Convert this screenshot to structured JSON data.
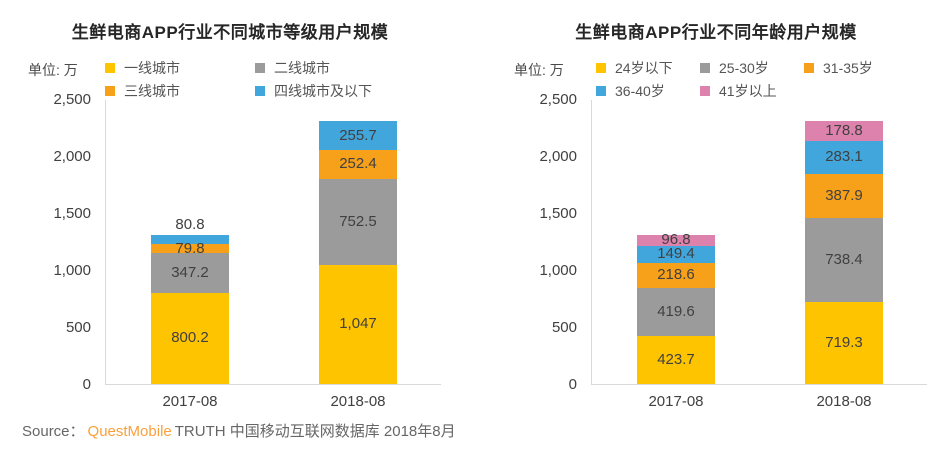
{
  "source": {
    "prefix": "Source：",
    "brand": "QuestMobile",
    "suffix": "TRUTH 中国移动互联网数据库 2018年8月"
  },
  "colors": {
    "yellow": "#ffc400",
    "gray": "#9b9b9b",
    "orange": "#f7a01a",
    "blue": "#41a6dc",
    "pink": "#dd82ac",
    "axis_line": "#d9d9d9",
    "label_text": "#404040",
    "brand_orange": "#f9a03c"
  },
  "chart_data": [
    {
      "type": "bar",
      "stacked": true,
      "title": "生鲜电商APP行业不同城市等级用户规模",
      "unit_label": "单位: 万",
      "categories": [
        "2017-08",
        "2018-08"
      ],
      "ylim": [
        0,
        2500
      ],
      "yticks": [
        "2,500",
        "2,000",
        "1,500",
        "1,000",
        "500",
        "0"
      ],
      "grid": false,
      "legend_position": "top",
      "series": [
        {
          "name": "一线城市",
          "color_key": "yellow",
          "values": [
            800.2,
            1047
          ],
          "labels": [
            "800.2",
            "1,047"
          ]
        },
        {
          "name": "二线城市",
          "color_key": "gray",
          "values": [
            347.2,
            752.5
          ],
          "labels": [
            "347.2",
            "752.5"
          ]
        },
        {
          "name": "三线城市",
          "color_key": "orange",
          "values": [
            79.8,
            252.4
          ],
          "labels": [
            "79.8",
            "252.4"
          ]
        },
        {
          "name": "四线城市及以下",
          "color_key": "blue",
          "values": [
            80.8,
            255.7
          ],
          "labels": [
            "80.8",
            "255.7"
          ]
        }
      ]
    },
    {
      "type": "bar",
      "stacked": true,
      "title": "生鲜电商APP行业不同年龄用户规模",
      "unit_label": "单位: 万",
      "categories": [
        "2017-08",
        "2018-08"
      ],
      "ylim": [
        0,
        2500
      ],
      "yticks": [
        "2,500",
        "2,000",
        "1,500",
        "1,000",
        "500",
        "0"
      ],
      "grid": false,
      "legend_position": "top",
      "series": [
        {
          "name": "24岁以下",
          "color_key": "yellow",
          "values": [
            423.7,
            719.3
          ],
          "labels": [
            "423.7",
            "719.3"
          ]
        },
        {
          "name": "25-30岁",
          "color_key": "gray",
          "values": [
            419.6,
            738.4
          ],
          "labels": [
            "419.6",
            "738.4"
          ]
        },
        {
          "name": "31-35岁",
          "color_key": "orange",
          "values": [
            218.6,
            387.9
          ],
          "labels": [
            "218.6",
            "387.9"
          ]
        },
        {
          "name": "36-40岁",
          "color_key": "blue",
          "values": [
            149.4,
            283.1
          ],
          "labels": [
            "149.4",
            "283.1"
          ]
        },
        {
          "name": "41岁以上",
          "color_key": "pink",
          "values": [
            96.8,
            178.8
          ],
          "labels": [
            "96.8",
            "178.8"
          ]
        }
      ]
    }
  ]
}
